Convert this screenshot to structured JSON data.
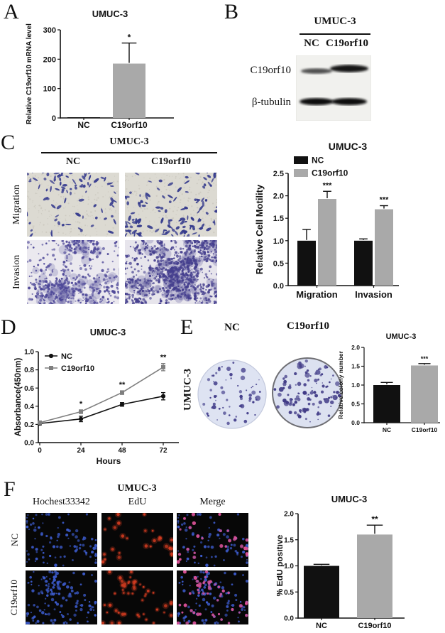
{
  "figure": {
    "background": "#ffffff",
    "panels": {
      "A": {
        "label": "A"
      },
      "B": {
        "label": "B",
        "title": "UMUC-3",
        "lanes": [
          "NC",
          "C19orf10"
        ],
        "row_labels": [
          "C19orf10",
          "β-tubulin"
        ]
      },
      "C": {
        "label": "C",
        "title": "UMUC-3",
        "column_labels": [
          "NC",
          "C19orf10"
        ],
        "row_labels": [
          "Migration",
          "Invasion"
        ]
      },
      "D": {
        "label": "D"
      },
      "E": {
        "label": "E",
        "side_label": "UMUC-3",
        "dish_labels": [
          "NC",
          "C19orf10"
        ]
      },
      "F": {
        "label": "F",
        "title": "UMUC-3",
        "column_labels": [
          "Hochest33342",
          "EdU",
          "Merge"
        ],
        "row_labels": [
          "NC",
          "C19orf10"
        ]
      }
    }
  },
  "colors": {
    "bar_black": "#111111",
    "bar_gray": "#a9a9a9",
    "line_gray": "#7f7f7f"
  },
  "chart_data": [
    {
      "id": "panelA",
      "type": "bar",
      "title": "UMUC-3",
      "categories": [
        "NC",
        "C19orf10"
      ],
      "values": [
        2,
        185
      ],
      "errors": [
        0,
        70
      ],
      "significance": [
        "",
        "*"
      ],
      "bar_colors": [
        "#111111",
        "#a9a9a9"
      ],
      "ylabel": "Relative C19orf10 mRNA level",
      "ylim": [
        0,
        300
      ],
      "yticks": [
        0,
        100,
        200,
        300
      ]
    },
    {
      "id": "panelC",
      "type": "bar",
      "title": "UMUC-3",
      "categories": [
        "Migration",
        "Invasion"
      ],
      "series": [
        {
          "name": "NC",
          "color": "#111111",
          "values": [
            1.0,
            1.0
          ],
          "errors": [
            0.25,
            0.04
          ],
          "significance": [
            "",
            ""
          ]
        },
        {
          "name": "C19orf10",
          "color": "#a9a9a9",
          "values": [
            1.93,
            1.7
          ],
          "errors": [
            0.17,
            0.08
          ],
          "significance": [
            "***",
            "***"
          ]
        }
      ],
      "ylabel": "Relative Cell Motility",
      "ylim": [
        0,
        2.5
      ],
      "yticks": [
        0,
        0.5,
        1.0,
        1.5,
        2.0,
        2.5
      ],
      "legend_position": "top-left"
    },
    {
      "id": "panelD",
      "type": "line",
      "title": "UMUC-3",
      "x": [
        0,
        24,
        48,
        72
      ],
      "xlabel": "Hours",
      "series": [
        {
          "name": "NC",
          "color": "#111111",
          "marker": "circle",
          "values": [
            0.21,
            0.26,
            0.42,
            0.51
          ],
          "errors": [
            0.015,
            0.03,
            0.02,
            0.04
          ],
          "significance": [
            "",
            "",
            "",
            ""
          ]
        },
        {
          "name": "C19orf10",
          "color": "#7f7f7f",
          "marker": "square",
          "values": [
            0.22,
            0.34,
            0.55,
            0.83
          ],
          "errors": [
            0.015,
            0.02,
            0.02,
            0.04
          ],
          "significance": [
            "",
            "*",
            "**",
            "**"
          ]
        }
      ],
      "ylabel": "Absorbance(450nm)",
      "ylim": [
        0,
        1.0
      ],
      "yticks": [
        0,
        0.2,
        0.4,
        0.6,
        0.8,
        1.0
      ],
      "legend_position": "top-left"
    },
    {
      "id": "panelE",
      "type": "bar",
      "title": "UMUC-3",
      "categories": [
        "NC",
        "C19orf10"
      ],
      "values": [
        1.0,
        1.52
      ],
      "errors": [
        0.07,
        0.05
      ],
      "significance": [
        "",
        "***"
      ],
      "bar_colors": [
        "#111111",
        "#a9a9a9"
      ],
      "ylabel": "Relative colony number",
      "ylim": [
        0,
        2.0
      ],
      "yticks": [
        0,
        0.5,
        1.0,
        1.5,
        2.0
      ]
    },
    {
      "id": "panelF",
      "type": "bar",
      "title": "UMUC-3",
      "categories": [
        "NC",
        "C19orf10"
      ],
      "values": [
        1.0,
        1.6
      ],
      "errors": [
        0.03,
        0.18
      ],
      "significance": [
        "",
        "**"
      ],
      "bar_colors": [
        "#111111",
        "#a9a9a9"
      ],
      "ylabel": "% EdU positive",
      "ylim": [
        0,
        2.0
      ],
      "yticks": [
        0,
        0.5,
        1.0,
        1.5,
        2.0
      ]
    }
  ],
  "micrographs": {
    "migration_nc": {
      "background": "#dcdad2",
      "cell_color": "#3a3f90",
      "cell_count": 90
    },
    "migration_c19orf10": {
      "background": "#dcdad2",
      "cell_color": "#343a8c",
      "cell_count": 130
    },
    "invasion_nc": {
      "background": "#ebe9ef",
      "cell_color": "#4e4898",
      "cell_count": 500
    },
    "invasion_c19orf10": {
      "background": "#e7e5ec",
      "cell_color": "#453f8e",
      "cell_count": 950
    },
    "colony_nc": {
      "dish_color": "#dee3f2",
      "colony_color": "#45408c",
      "colony_count": 65,
      "rim_color": "#c3c9dd"
    },
    "colony_c19orf10": {
      "dish_color": "#dce1f0",
      "colony_color": "#403a86",
      "colony_count": 110,
      "rim_color": "#6f6f74"
    },
    "edu_nc": {
      "background": "#070707",
      "hoechst_color": "#3c5bcc",
      "edu_color": "#d23b20",
      "merge_edu_color": "#da5094",
      "nuclei_count": 95,
      "edu_count": 28
    },
    "edu_c19orf10": {
      "background": "#070707",
      "hoechst_color": "#3c5bcc",
      "edu_color": "#d23b20",
      "merge_edu_color": "#da5094",
      "nuclei_count": 140,
      "edu_count": 48
    }
  },
  "western_blot": {
    "bands": [
      {
        "row": "C19orf10",
        "lane": "NC",
        "intensity": "medium"
      },
      {
        "row": "C19orf10",
        "lane": "C19orf10",
        "intensity": "strong"
      },
      {
        "row": "β-tubulin",
        "lane": "NC",
        "intensity": "strong"
      },
      {
        "row": "β-tubulin",
        "lane": "C19orf10",
        "intensity": "strong"
      }
    ]
  }
}
